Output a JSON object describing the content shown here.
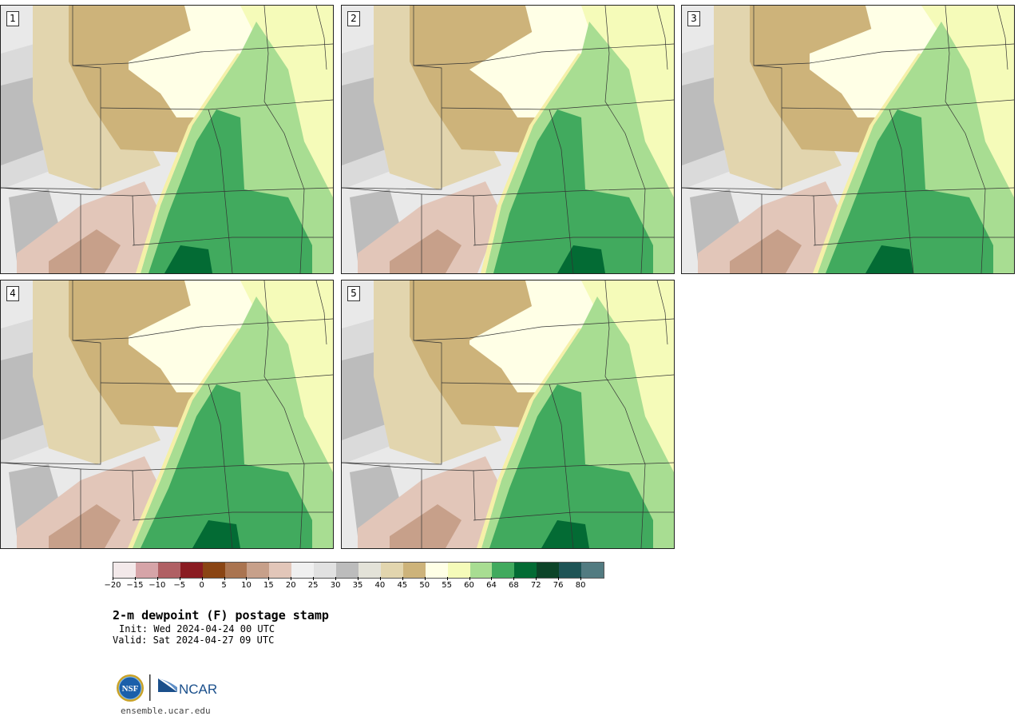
{
  "panels": [
    {
      "number": "1"
    },
    {
      "number": "2"
    },
    {
      "number": "3"
    },
    {
      "number": "4"
    },
    {
      "number": "5"
    }
  ],
  "colorbar": {
    "colors": [
      "#f3e9ea",
      "#d6a4a8",
      "#b06064",
      "#8a1c22",
      "#8a4514",
      "#aa7450",
      "#c7a08a",
      "#e2c6b9",
      "#f0f0f0",
      "#e1e1e1",
      "#bcbcbc",
      "#e3e2d8",
      "#e2d5ae",
      "#cdb37a",
      "#ffffe6",
      "#f5fbb9",
      "#a8dd92",
      "#41aa5e",
      "#036b34",
      "#0c4428",
      "#1e5456",
      "#527b81"
    ],
    "tick_labels": [
      "−20",
      "−15",
      "−10",
      "−5",
      "0",
      "5",
      "10",
      "15",
      "20",
      "25",
      "30",
      "35",
      "40",
      "45",
      "50",
      "55",
      "60",
      "64",
      "68",
      "72",
      "76",
      "80"
    ]
  },
  "title": "2-m dewpoint (F) postage stamp",
  "init": "Init: Wed 2024-04-24 00 UTC",
  "valid": "Valid: Sat 2024-04-27 09 UTC",
  "logos": {
    "nsf": "NSF",
    "ncar": "NCAR"
  },
  "url": "ensemble.ucar.edu"
}
